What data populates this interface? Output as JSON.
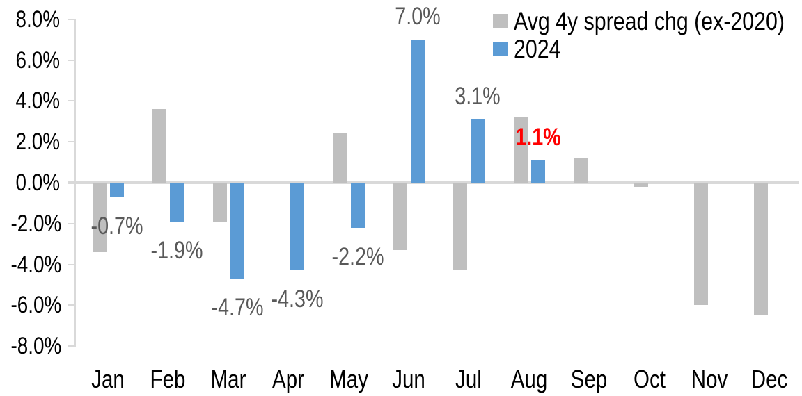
{
  "chart_data": {
    "type": "bar",
    "title": "",
    "categories": [
      "Jan",
      "Feb",
      "Mar",
      "Apr",
      "May",
      "Jun",
      "Jul",
      "Aug",
      "Sep",
      "Oct",
      "Nov",
      "Dec"
    ],
    "series": [
      {
        "name": "Avg 4y spread chg (ex-2020)",
        "color": "#BFBFBF",
        "values": [
          -3.4,
          3.6,
          -1.9,
          0.0,
          2.4,
          -3.3,
          -4.3,
          3.2,
          1.2,
          -0.2,
          -6.0,
          -6.5
        ]
      },
      {
        "name": "2024",
        "color": "#5B9BD5",
        "values": [
          -0.7,
          -1.9,
          -4.7,
          -4.3,
          -2.2,
          7.0,
          3.1,
          1.1,
          null,
          null,
          null,
          null
        ]
      }
    ],
    "data_labels": [
      {
        "category": "Jan",
        "series": "2024",
        "text": "-0.7%",
        "color": "#595959",
        "bold": false,
        "position": "below"
      },
      {
        "category": "Feb",
        "series": "2024",
        "text": "-1.9%",
        "color": "#595959",
        "bold": false,
        "position": "below"
      },
      {
        "category": "Mar",
        "series": "2024",
        "text": "-4.7%",
        "color": "#595959",
        "bold": false,
        "position": "below"
      },
      {
        "category": "Apr",
        "series": "2024",
        "text": "-4.3%",
        "color": "#595959",
        "bold": false,
        "position": "below"
      },
      {
        "category": "May",
        "series": "2024",
        "text": "-2.2%",
        "color": "#595959",
        "bold": false,
        "position": "below"
      },
      {
        "category": "Jun",
        "series": "2024",
        "text": "7.0%",
        "color": "#595959",
        "bold": false,
        "position": "above"
      },
      {
        "category": "Jul",
        "series": "2024",
        "text": "3.1%",
        "color": "#595959",
        "bold": false,
        "position": "above"
      },
      {
        "category": "Aug",
        "series": "2024",
        "text": "1.1%",
        "color": "#FF0000",
        "bold": true,
        "position": "above"
      }
    ],
    "y_axis": {
      "min": -8,
      "max": 8,
      "step": 2,
      "tick_labels": [
        "8.0%",
        "6.0%",
        "4.0%",
        "2.0%",
        "0.0%",
        "-2.0%",
        "-4.0%",
        "-6.0%",
        "-8.0%"
      ]
    },
    "legend_position": "top-right",
    "grid": false,
    "styles": {
      "axis_color": "#D9D9D9",
      "tick_label_color": "#000000",
      "data_label_color": "#595959",
      "highlight_label_color": "#FF0000",
      "background": "#FFFFFF"
    }
  }
}
